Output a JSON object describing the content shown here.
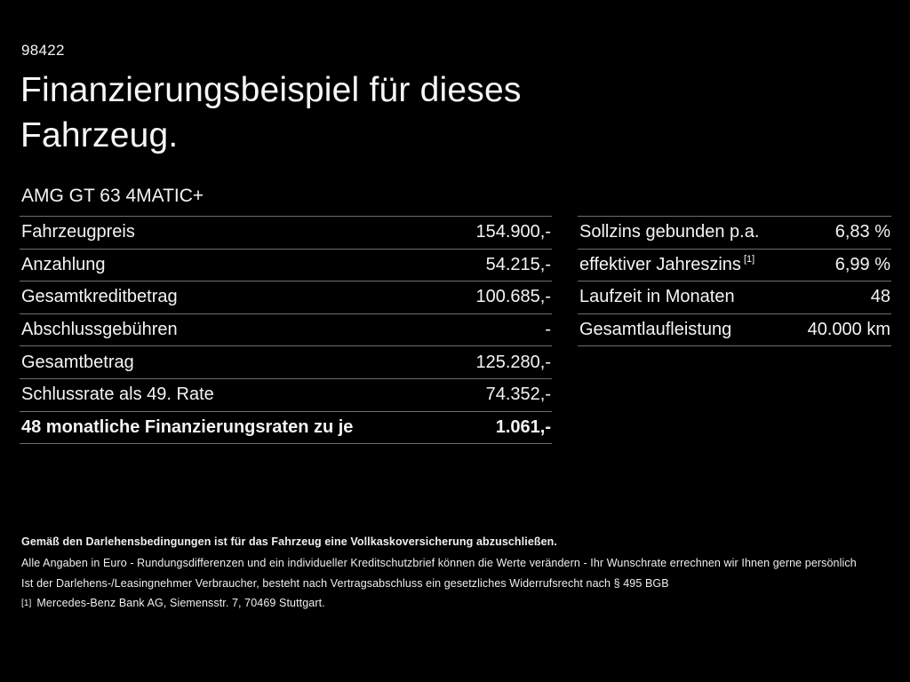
{
  "page": {
    "background_color": "#000000",
    "text_color": "#f4f4f4",
    "divider_color": "#6e6e6e"
  },
  "header": {
    "ref_number": "98422",
    "title_line1": "Finanzierungsbeispiel für dieses",
    "title_line2": "Fahrzeug.",
    "vehicle_name": "AMG GT 63 4MATIC+"
  },
  "financing_table": {
    "rows": [
      {
        "label": "Fahrzeugpreis",
        "value": "154.900,-"
      },
      {
        "label": "Anzahlung",
        "value": "54.215,-"
      },
      {
        "label": "Gesamtkreditbetrag",
        "value": "100.685,-"
      },
      {
        "label": "Abschlussgebühren",
        "value": "-"
      },
      {
        "label": "Gesamtbetrag",
        "value": "125.280,-"
      },
      {
        "label": "Schlussrate als 49. Rate",
        "value": "74.352,-"
      },
      {
        "label": "48 monatliche Finanzierungsraten zu je",
        "value": "1.061,-"
      }
    ]
  },
  "conditions_table": {
    "rows": [
      {
        "label": "Sollzins gebunden p.a.",
        "value": "6,83 %"
      },
      {
        "label": "effektiver Jahreszins",
        "footnote_marker": "[1]",
        "value": "6,99 %"
      },
      {
        "label": "Laufzeit in Monaten",
        "value": "48"
      },
      {
        "label": "Gesamtlaufleistung",
        "value": "40.000 km"
      }
    ]
  },
  "footer": {
    "insurance_note": "Gemäß den Darlehensbedingungen ist für das Fahrzeug eine Vollkaskoversicherung abzuschließen.",
    "note_line1": "Alle Angaben in Euro - Rundungsdifferenzen und ein individueller Kreditschutzbrief können die Werte verändern - Ihr Wunschrate errechnen wir Ihnen gerne persönlich",
    "note_line2": "Ist der Darlehens-/Leasingnehmer Verbraucher, besteht nach Vertragsabschluss ein gesetzliches Widerrufsrecht nach § 495 BGB",
    "footnote_marker": "[1]",
    "footnote_text": "Mercedes-Benz Bank AG, Siemensstr. 7, 70469 Stuttgart."
  }
}
